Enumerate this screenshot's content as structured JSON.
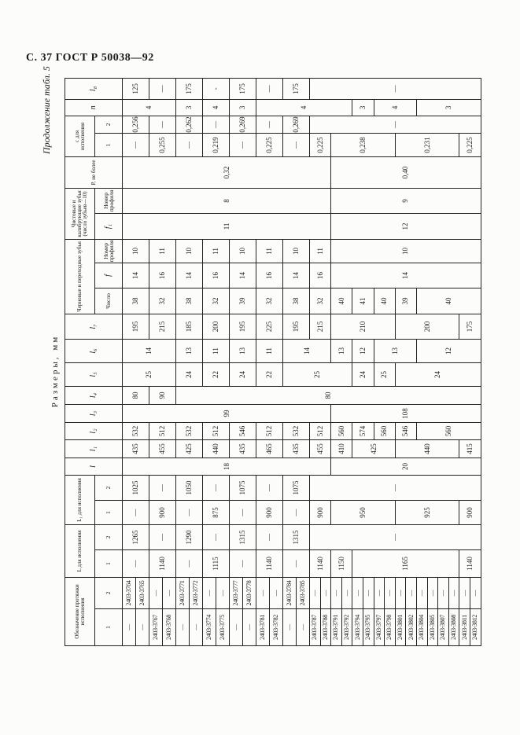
{
  "page": {
    "title": "С. 37 ГОСТ Р 50038—92",
    "continuation": "Продолжение табл. 5",
    "dimensions_caption": "Размеры, мм"
  },
  "header": {
    "designation": "Обозначение протяжки исполнения",
    "L": "L для исполнения",
    "L1": "L₁ для исполнения",
    "l": "l",
    "l1": "l₁",
    "l2": "l₂",
    "l3": "l₃",
    "l4": "l₄",
    "l5": "l₅",
    "l6": "l₆",
    "l7": "l₇",
    "rough_teeth": "Черновые и переходные зубья",
    "count": "Число",
    "f": "f",
    "profile_number": "Номер профиля",
    "finishing_teeth": "Чистовые и калибрующие зубья (число зубьев—10)",
    "f1": "f₁",
    "profile_number_2": "Номер профиля",
    "P": "P, не более",
    "c": "c для исполнения",
    "n": "n",
    "l8": "l₈",
    "sub1": "1",
    "sub2": "2"
  },
  "table": {
    "row_count": 30,
    "columns": [
      {
        "key": "designation_1",
        "segments": [
          [
            1,
            "—"
          ],
          [
            1,
            "—"
          ],
          [
            1,
            "2403-3767"
          ],
          [
            1,
            "2403-3768"
          ],
          [
            1,
            "—"
          ],
          [
            1,
            "—"
          ],
          [
            1,
            "2403-3774"
          ],
          [
            1,
            "2403-3775"
          ],
          [
            1,
            "—"
          ],
          [
            1,
            "—"
          ],
          [
            1,
            "2403-3781"
          ],
          [
            1,
            "2403-3782"
          ],
          [
            1,
            "—"
          ],
          [
            1,
            "—"
          ],
          [
            1,
            "2403-3787"
          ],
          [
            1,
            "2403-3788"
          ],
          [
            1,
            "2403-3791"
          ],
          [
            1,
            "2403-3792"
          ],
          [
            1,
            "2403-3794"
          ],
          [
            1,
            "2403-3795"
          ],
          [
            1,
            "2403-3797"
          ],
          [
            1,
            "2403-3798"
          ],
          [
            1,
            "2403-3801"
          ],
          [
            1,
            "2403-3802"
          ],
          [
            1,
            "2403-3804"
          ],
          [
            1,
            "2403-3805"
          ],
          [
            1,
            "2403-3807"
          ],
          [
            1,
            "2403-3808"
          ],
          [
            1,
            "2403-3811"
          ],
          [
            1,
            "2403-3812"
          ]
        ]
      },
      {
        "key": "designation_2",
        "segments": [
          [
            1,
            "2403-3764"
          ],
          [
            1,
            "2403-3765"
          ],
          [
            1,
            "—"
          ],
          [
            1,
            "—"
          ],
          [
            1,
            "2403-3771"
          ],
          [
            1,
            "2403-3772"
          ],
          [
            1,
            "—"
          ],
          [
            1,
            "—"
          ],
          [
            1,
            "2403-3777"
          ],
          [
            1,
            "2403-3778"
          ],
          [
            1,
            "—"
          ],
          [
            1,
            "—"
          ],
          [
            1,
            "2403-3784"
          ],
          [
            1,
            "2403-3785"
          ],
          [
            1,
            "—"
          ],
          [
            1,
            "—"
          ],
          [
            1,
            "—"
          ],
          [
            1,
            "—"
          ],
          [
            1,
            "—"
          ],
          [
            1,
            "—"
          ],
          [
            1,
            "—"
          ],
          [
            1,
            "—"
          ],
          [
            1,
            "—"
          ],
          [
            1,
            "—"
          ],
          [
            1,
            "—"
          ],
          [
            1,
            "—"
          ],
          [
            1,
            "—"
          ],
          [
            1,
            "—"
          ],
          [
            1,
            "—"
          ],
          [
            1,
            "—"
          ]
        ]
      },
      {
        "key": "L_1",
        "segments": [
          [
            2,
            "—"
          ],
          [
            2,
            "1140"
          ],
          [
            2,
            "—"
          ],
          [
            2,
            "1115"
          ],
          [
            2,
            "—"
          ],
          [
            2,
            "1140"
          ],
          [
            2,
            "—"
          ],
          [
            2,
            "1140"
          ],
          [
            2,
            "1150"
          ],
          [
            10,
            "1165"
          ],
          [
            2,
            "1140"
          ]
        ]
      },
      {
        "key": "L_2",
        "segments": [
          [
            2,
            "1265"
          ],
          [
            2,
            "—"
          ],
          [
            2,
            "1290"
          ],
          [
            2,
            "—"
          ],
          [
            2,
            "1315"
          ],
          [
            2,
            "—"
          ],
          [
            2,
            "1315"
          ],
          [
            16,
            "—"
          ]
        ]
      },
      {
        "key": "L1_1",
        "segments": [
          [
            2,
            "—"
          ],
          [
            2,
            "900"
          ],
          [
            2,
            "—"
          ],
          [
            2,
            "875"
          ],
          [
            2,
            "—"
          ],
          [
            2,
            "900"
          ],
          [
            2,
            "—"
          ],
          [
            2,
            "900"
          ],
          [
            6,
            "950"
          ],
          [
            6,
            "925"
          ],
          [
            2,
            "900"
          ]
        ]
      },
      {
        "key": "L1_2",
        "segments": [
          [
            2,
            "1025"
          ],
          [
            2,
            "—"
          ],
          [
            2,
            "1050"
          ],
          [
            2,
            "—"
          ],
          [
            2,
            "1075"
          ],
          [
            2,
            "—"
          ],
          [
            2,
            "1075"
          ],
          [
            16,
            "—"
          ]
        ]
      },
      {
        "key": "l",
        "segments": [
          [
            16,
            "18"
          ],
          [
            14,
            "20"
          ]
        ]
      },
      {
        "key": "l1",
        "segments": [
          [
            2,
            "435"
          ],
          [
            2,
            "455"
          ],
          [
            2,
            "425"
          ],
          [
            2,
            "440"
          ],
          [
            2,
            "435"
          ],
          [
            2,
            "465"
          ],
          [
            2,
            "435"
          ],
          [
            2,
            "455"
          ],
          [
            2,
            "410"
          ],
          [
            4,
            "425"
          ],
          [
            6,
            "440"
          ],
          [
            2,
            "415"
          ]
        ]
      },
      {
        "key": "l2",
        "segments": [
          [
            2,
            "532"
          ],
          [
            2,
            "512"
          ],
          [
            2,
            "532"
          ],
          [
            2,
            "512"
          ],
          [
            2,
            "546"
          ],
          [
            2,
            "512"
          ],
          [
            2,
            "532"
          ],
          [
            2,
            "512"
          ],
          [
            2,
            "560"
          ],
          [
            2,
            "574"
          ],
          [
            2,
            "560"
          ],
          [
            2,
            "546"
          ],
          [
            6,
            "560"
          ]
        ]
      },
      {
        "key": "l3",
        "segments": [
          [
            16,
            "99"
          ],
          [
            14,
            "108"
          ]
        ]
      },
      {
        "key": "l4",
        "segments": [
          [
            2,
            "80"
          ],
          [
            2,
            "90"
          ],
          [
            26,
            "80"
          ]
        ]
      },
      {
        "key": "l5",
        "segments": [
          [
            4,
            "25"
          ],
          [
            2,
            "24"
          ],
          [
            2,
            "22"
          ],
          [
            2,
            "24"
          ],
          [
            2,
            "22"
          ],
          [
            6,
            "25"
          ],
          [
            2,
            "24"
          ],
          [
            2,
            "25"
          ],
          [
            8,
            "24"
          ]
        ]
      },
      {
        "key": "l6",
        "segments": [
          [
            4,
            "14"
          ],
          [
            2,
            "13"
          ],
          [
            2,
            "11"
          ],
          [
            2,
            "13"
          ],
          [
            2,
            "11"
          ],
          [
            4,
            "14"
          ],
          [
            2,
            "13"
          ],
          [
            2,
            "12"
          ],
          [
            4,
            "13"
          ],
          [
            6,
            "12"
          ]
        ]
      },
      {
        "key": "l7",
        "segments": [
          [
            2,
            "195"
          ],
          [
            2,
            "215"
          ],
          [
            2,
            "185"
          ],
          [
            2,
            "200"
          ],
          [
            2,
            "195"
          ],
          [
            2,
            "225"
          ],
          [
            2,
            "195"
          ],
          [
            2,
            "215"
          ],
          [
            6,
            "210"
          ],
          [
            6,
            "200"
          ],
          [
            2,
            "175"
          ]
        ]
      },
      {
        "key": "rough_count",
        "segments": [
          [
            2,
            "38"
          ],
          [
            2,
            "32"
          ],
          [
            2,
            "38"
          ],
          [
            2,
            "32"
          ],
          [
            2,
            "39"
          ],
          [
            2,
            "32"
          ],
          [
            2,
            "38"
          ],
          [
            2,
            "32"
          ],
          [
            2,
            "40"
          ],
          [
            2,
            "41"
          ],
          [
            2,
            "40"
          ],
          [
            2,
            "39"
          ],
          [
            6,
            "40"
          ]
        ]
      },
      {
        "key": "rough_f",
        "segments": [
          [
            2,
            "14"
          ],
          [
            2,
            "16"
          ],
          [
            2,
            "14"
          ],
          [
            2,
            "16"
          ],
          [
            2,
            "14"
          ],
          [
            2,
            "16"
          ],
          [
            2,
            "14"
          ],
          [
            2,
            "16"
          ],
          [
            14,
            "14"
          ]
        ]
      },
      {
        "key": "rough_profile",
        "segments": [
          [
            2,
            "10"
          ],
          [
            2,
            "11"
          ],
          [
            2,
            "10"
          ],
          [
            2,
            "11"
          ],
          [
            2,
            "10"
          ],
          [
            2,
            "11"
          ],
          [
            2,
            "10"
          ],
          [
            2,
            "11"
          ],
          [
            14,
            "10"
          ]
        ]
      },
      {
        "key": "finish_f1",
        "segments": [
          [
            16,
            "11"
          ],
          [
            14,
            "12"
          ]
        ]
      },
      {
        "key": "finish_profile",
        "segments": [
          [
            16,
            "8"
          ],
          [
            14,
            "9"
          ]
        ]
      },
      {
        "key": "P",
        "segments": [
          [
            16,
            "0,32"
          ],
          [
            14,
            "0,40"
          ]
        ]
      },
      {
        "key": "c_1",
        "segments": [
          [
            2,
            "—"
          ],
          [
            2,
            "0,255"
          ],
          [
            2,
            "—"
          ],
          [
            2,
            "0,219"
          ],
          [
            2,
            "—"
          ],
          [
            2,
            "0,225"
          ],
          [
            2,
            "—"
          ],
          [
            2,
            "0,225"
          ],
          [
            6,
            "0,238"
          ],
          [
            6,
            "0,231"
          ],
          [
            2,
            "0,225"
          ]
        ]
      },
      {
        "key": "c_2",
        "segments": [
          [
            2,
            "0,256"
          ],
          [
            2,
            "—"
          ],
          [
            2,
            "0,262"
          ],
          [
            2,
            "—"
          ],
          [
            2,
            "0,269"
          ],
          [
            2,
            "—"
          ],
          [
            2,
            "0,269"
          ],
          [
            16,
            "—"
          ]
        ]
      },
      {
        "key": "n",
        "segments": [
          [
            4,
            "4"
          ],
          [
            2,
            "3"
          ],
          [
            2,
            "4"
          ],
          [
            2,
            "3"
          ],
          [
            8,
            "4"
          ],
          [
            2,
            "3"
          ],
          [
            4,
            "4"
          ],
          [
            6,
            "3"
          ]
        ]
      },
      {
        "key": "l8",
        "segments": [
          [
            2,
            "125"
          ],
          [
            2,
            "—"
          ],
          [
            2,
            "175"
          ],
          [
            2,
            "-"
          ],
          [
            2,
            "175"
          ],
          [
            2,
            "—"
          ],
          [
            2,
            "175"
          ],
          [
            16,
            "—"
          ]
        ]
      }
    ]
  }
}
